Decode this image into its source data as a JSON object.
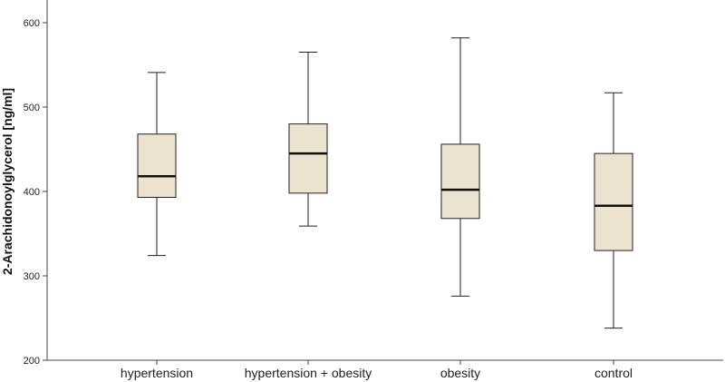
{
  "chart_data": {
    "type": "boxplot",
    "title": "",
    "xlabel": "",
    "ylabel": "2-Arachidonoylglycerol [ng/ml]",
    "ylim": [
      200,
      640
    ],
    "yticks": [
      200,
      300,
      400,
      500,
      600
    ],
    "grid": false,
    "categories": [
      "hypertension",
      "hypertension + obesity",
      "obesity",
      "control"
    ],
    "series": [
      {
        "boxes": [
          {
            "min": 324,
            "q1": 393,
            "median": 418,
            "q3": 468,
            "max": 541
          },
          {
            "min": 359,
            "q1": 398,
            "median": 445,
            "q3": 480,
            "max": 565
          },
          {
            "min": 276,
            "q1": 368,
            "median": 402,
            "q3": 456,
            "max": 582
          },
          {
            "min": 238,
            "q1": 330,
            "median": 383,
            "q3": 445,
            "max": 517
          }
        ]
      }
    ],
    "colors": {
      "box_fill": "#ebe3cf",
      "stroke": "#222222"
    }
  }
}
